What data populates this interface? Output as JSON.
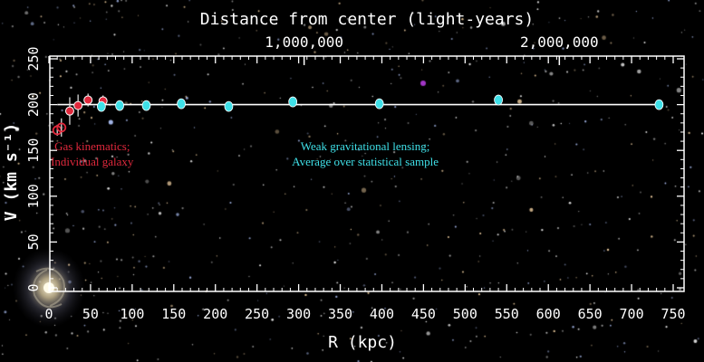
{
  "chart_data": {
    "type": "scatter",
    "title": "",
    "xlabel": "R (kpc)",
    "ylabel": "V (km s⁻¹)",
    "top_axis_label": "Distance from center (light-years)",
    "top_ticks": [
      {
        "value": 306.6,
        "label": "1,000,000"
      },
      {
        "value": 613.2,
        "label": "2,000,000"
      }
    ],
    "xlim": [
      0,
      760
    ],
    "ylim": [
      0,
      250
    ],
    "x_ticks": [
      0,
      50,
      100,
      150,
      200,
      250,
      300,
      350,
      400,
      450,
      500,
      550,
      600,
      650,
      700,
      750
    ],
    "y_ticks": [
      0,
      50,
      100,
      150,
      200,
      250
    ],
    "reference_line": {
      "y": 200,
      "x_start": 10,
      "x_end": 735
    },
    "series": [
      {
        "color": "#e0283c",
        "points": [
          {
            "x": 10,
            "y": 172,
            "err": 6,
            "open": true
          },
          {
            "x": 15,
            "y": 175,
            "err": 10,
            "open": true
          },
          {
            "x": 25,
            "y": 193,
            "err": 15,
            "open": false
          },
          {
            "x": 35,
            "y": 199,
            "err": 12,
            "open": false
          },
          {
            "x": 47,
            "y": 205,
            "err": 7,
            "open": false
          },
          {
            "x": 65,
            "y": 204,
            "err": 6,
            "open": false
          }
        ]
      },
      {
        "color": "#3fe0e8",
        "points": [
          {
            "x": 63,
            "y": 198,
            "err": 3
          },
          {
            "x": 85,
            "y": 199,
            "err": 3
          },
          {
            "x": 117,
            "y": 199,
            "err": 3
          },
          {
            "x": 159,
            "y": 201,
            "err": 3
          },
          {
            "x": 216,
            "y": 198,
            "err": 3
          },
          {
            "x": 293,
            "y": 203,
            "err": 3
          },
          {
            "x": 397,
            "y": 201,
            "err": 3
          },
          {
            "x": 540,
            "y": 205,
            "err": 3
          },
          {
            "x": 733,
            "y": 200,
            "err": 3
          }
        ]
      }
    ],
    "annotations": [
      {
        "lines": [
          "Gas kinematics;",
          "Individual galaxy"
        ],
        "color": "#e0283c",
        "x": 52,
        "y": 150
      },
      {
        "lines": [
          "Weak gravitational lensing;",
          "Average over statistical sample"
        ],
        "color": "#3fe0e8",
        "x": 380,
        "y": 150
      }
    ]
  },
  "colors": {
    "background": "#000000",
    "axis": "#ffffff",
    "galaxy": "#cfc2a0"
  }
}
